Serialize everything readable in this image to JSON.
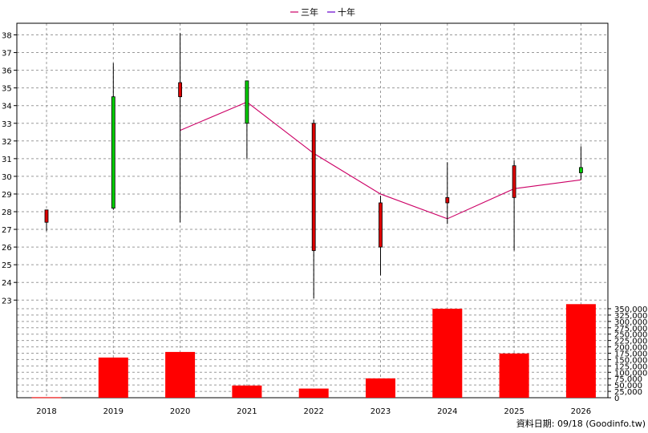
{
  "chart_data": {
    "type": "candlestick",
    "categories": [
      "2018",
      "2019",
      "2020",
      "2021",
      "2022",
      "2023",
      "2024",
      "2025",
      "2026"
    ],
    "candles": [
      {
        "year": "2018",
        "open": 28.1,
        "high": 28.1,
        "low": 26.9,
        "close": 27.4
      },
      {
        "year": "2019",
        "open": 28.2,
        "high": 36.4,
        "low": 28.1,
        "close": 34.5
      },
      {
        "year": "2020",
        "open": 35.3,
        "high": 38.1,
        "low": 27.4,
        "close": 34.5
      },
      {
        "year": "2021",
        "open": 33.0,
        "high": 35.4,
        "low": 31.0,
        "close": 35.4
      },
      {
        "year": "2022",
        "open": 33.0,
        "high": 33.2,
        "low": 23.1,
        "close": 25.8
      },
      {
        "year": "2023",
        "open": 28.5,
        "high": 28.9,
        "low": 24.4,
        "close": 26.0
      },
      {
        "year": "2024",
        "open": 28.8,
        "high": 30.8,
        "low": 27.3,
        "close": 28.5
      },
      {
        "year": "2025",
        "open": 30.6,
        "high": 30.9,
        "low": 25.8,
        "close": 28.8
      },
      {
        "year": "2026",
        "open": 30.2,
        "high": 31.7,
        "low": 29.8,
        "close": 30.5
      }
    ],
    "line": {
      "name": "三年",
      "x": [
        "2020",
        "2021",
        "2022",
        "2023",
        "2024",
        "2025",
        "2026"
      ],
      "values": [
        32.6,
        34.2,
        31.3,
        29.0,
        27.6,
        29.3,
        29.8
      ]
    },
    "legend": [
      "三年",
      "十年"
    ],
    "volume": {
      "values": [
        2000,
        158000,
        180000,
        48000,
        36000,
        76000,
        350000,
        174000,
        368000
      ],
      "yticks": [
        0,
        25000,
        50000,
        75000,
        100000,
        125000,
        150000,
        175000,
        200000,
        225000,
        250000,
        275000,
        300000,
        325000,
        350000
      ],
      "ytick_labels": [
        "0",
        "25,000",
        "50,000",
        "75,000",
        "100,000",
        "125,000",
        "150,000",
        "175,000",
        "200,000",
        "225,000",
        "250,000",
        "275,000",
        "300,000",
        "325,000",
        "350,000"
      ]
    },
    "price_yticks": [
      23,
      24,
      25,
      26,
      27,
      28,
      29,
      30,
      31,
      32,
      33,
      34,
      35,
      36,
      37,
      38
    ],
    "ylim": [
      22.3,
      38.7
    ],
    "grid": true,
    "legend_position": "top-center",
    "source": "資料日期: 09/18  (Goodinfo.tw)",
    "colors": {
      "up": "#00cc00",
      "down": "#dd0000",
      "wick": "#000000",
      "volume": "#ff0000",
      "line_three": "#cc0066",
      "line_ten": "#6600cc"
    }
  }
}
